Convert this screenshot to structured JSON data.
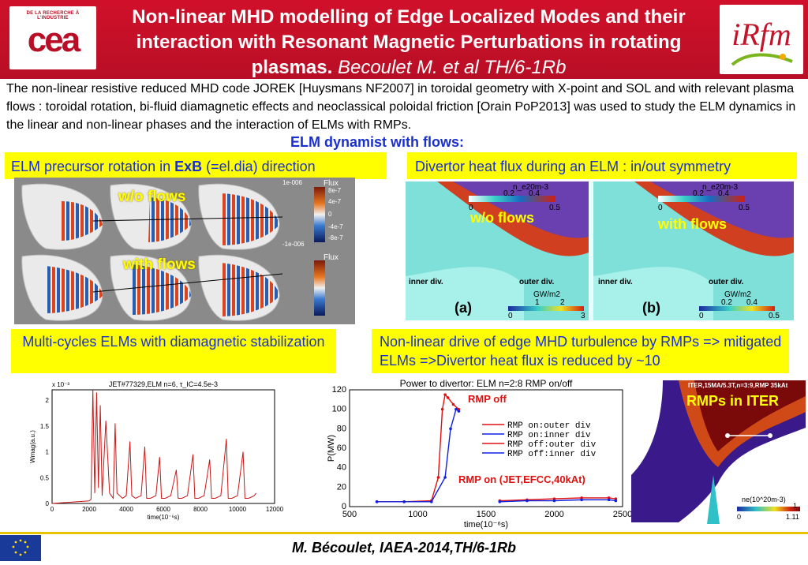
{
  "header": {
    "cea_small_text": "DE LA RECHERCHE À L'INDUSTRIE",
    "cea_logo_text": "cea",
    "title": "Non-linear MHD modelling of  Edge Localized Modes and their interaction with Resonant Magnetic Perturbations in rotating plasmas.",
    "author": "Becoulet M. et al TH/6-1Rb",
    "irfm_logo_text": "iRfm"
  },
  "intro": {
    "text": "The non-linear resistive reduced MHD code JOREK [Huysmans NF2007] in toroidal geometry with X-point and SOL and with relevant plasma flows : toroidal rotation, bi-fluid diamagnetic effects and neoclassical poloidal friction [Orain PoP2013]  was used to study the ELM dynamics in the linear and non-linear phases and the interaction of ELMs with RMPs."
  },
  "flows_heading": "ELM dynamist with flows:",
  "boxes": {
    "precursor_pre": "ELM precursor rotation in ",
    "precursor_bold": "ExB",
    "precursor_post": " (=el.dia) direction",
    "divertor": "Divertor heat flux during an ELM : in/out symmetry",
    "multicycle": "Multi-cycles ELMs  with diamagnetic stabilization",
    "nonlinear": "Non-linear drive of edge MHD turbulence by RMPs => mitigated ELMs =>Divertor heat flux is reduced  by ~10"
  },
  "sim_panel": {
    "label_without": "w/o flows",
    "label_with": "with flows",
    "colorbar_title": "Flux",
    "colorbar_ticks": [
      "1e-006",
      "8e-7",
      "4e-7",
      "0",
      "-4e-7",
      "-8e-7",
      "-1e-006"
    ]
  },
  "divertor_panel": {
    "label_without": "w/o flows",
    "label_with": "with flows",
    "density_title": "n_e20m-3",
    "density_ticks_a_top": [
      "0.2",
      "0.4"
    ],
    "density_ticks_a_bottom": [
      "0",
      "0.5"
    ],
    "density_ticks_b_top": [
      "0.2",
      "0.4"
    ],
    "density_ticks_b_bottom": [
      "0",
      "0.5"
    ],
    "inner_div": "inner div.",
    "outer_div": "outer div.",
    "flux_title": "GW/m2",
    "flux_ticks_a_top": [
      "1",
      "2"
    ],
    "flux_ticks_a_bottom": [
      "0",
      "3"
    ],
    "flux_ticks_b_top": [
      "0.2",
      "0.4"
    ],
    "flux_ticks_b_bottom": [
      "0",
      "0.5"
    ],
    "tag_a": "(a)",
    "tag_b": "(b)"
  },
  "chart_data": [
    {
      "type": "line",
      "title": "JET#77329,ELM n=6, τ_IC=4.5e-3",
      "xlabel": "time(10⁻⁶s)",
      "ylabel": "Wmag(a.u.)",
      "y_scale_note": "x 10⁻³",
      "xlim": [
        0,
        12000
      ],
      "ylim": [
        0,
        2.2
      ],
      "xticks": [
        "0",
        "2000",
        "4000",
        "6000",
        "8000",
        "10000",
        "12000"
      ],
      "yticks": [
        "0",
        "0.5",
        "1",
        "1.5",
        "2"
      ],
      "series": [
        {
          "x": [
            0,
            2000,
            2100,
            2200,
            2300,
            2400,
            2500,
            2600,
            2700,
            2900,
            3100,
            3300,
            3400,
            3500,
            3800,
            4000,
            4200,
            4300,
            4500,
            4800,
            5000,
            5100,
            5300,
            5600,
            5800,
            5900,
            6100,
            6400,
            6700,
            6800,
            7000,
            7300,
            7600,
            7700,
            7900,
            8200,
            8500,
            8600,
            8800,
            9100,
            9400,
            9500,
            9700,
            10000,
            10300,
            10400,
            10600,
            10900,
            11000
          ],
          "y": [
            0,
            0.05,
            0.08,
            2.2,
            0.2,
            2.15,
            0.3,
            1.9,
            0.15,
            1.6,
            0.2,
            0.1,
            1.55,
            0.2,
            0.1,
            0.15,
            1.2,
            0.15,
            0.1,
            0.15,
            1.1,
            0.1,
            0.1,
            0.15,
            0.9,
            0.1,
            0.1,
            0.15,
            0.65,
            0.1,
            0.1,
            0.15,
            0.95,
            0.1,
            0.1,
            0.15,
            0.85,
            0.1,
            0.1,
            0.15,
            1.25,
            0.1,
            0.1,
            0.15,
            1.0,
            0.1,
            0.1,
            0.15,
            0.2
          ]
        }
      ]
    },
    {
      "type": "line",
      "title": "Power to divertor: ELM n=2:8 RMP on/off",
      "xlabel": "time(10⁻⁶s)",
      "ylabel": "P(MW)",
      "xlim": [
        500,
        2500
      ],
      "ylim": [
        0,
        120
      ],
      "xticks": [
        "500",
        "1000",
        "1500",
        "2000",
        "2500"
      ],
      "yticks": [
        "0",
        "20",
        "40",
        "60",
        "80",
        "100",
        "120"
      ],
      "series": [
        {
          "name": "RMP on:outer div",
          "color": "#e01010",
          "x": [
            1600,
            1800,
            2000,
            2200,
            2400,
            2450
          ],
          "y": [
            6,
            7,
            8,
            9,
            9,
            8
          ]
        },
        {
          "name": "RMP on:inner div",
          "color": "#1020e0",
          "x": [
            1600,
            1800,
            2000,
            2200,
            2400,
            2450
          ],
          "y": [
            5,
            6,
            6,
            7,
            7,
            6
          ]
        },
        {
          "name": "RMP off:outer div",
          "color": "#e01010",
          "x": [
            700,
            900,
            1100,
            1150,
            1180,
            1200,
            1220,
            1260,
            1300
          ],
          "y": [
            5,
            5,
            6,
            30,
            100,
            115,
            112,
            105,
            100
          ]
        },
        {
          "name": "RMP off:inner div",
          "color": "#1020e0",
          "x": [
            700,
            900,
            1100,
            1200,
            1240,
            1280,
            1300
          ],
          "y": [
            5,
            5,
            5,
            30,
            80,
            100,
            98
          ]
        }
      ],
      "annotations": [
        "RMP off",
        "RMP on (JET,EFCC,40kAt)"
      ]
    }
  ],
  "iter_panel": {
    "caption": "ITER,15MA/5.3T,n=3:9,RMP 35kAt",
    "label": "RMPs in ITER",
    "colorbar_title": "ne(10^20m-3)",
    "colorbar_ticks": [
      "0",
      "1",
      "1.11"
    ]
  },
  "footer": {
    "text": "M. Bécoulet, IAEA-2014,TH/6-1Rb"
  }
}
